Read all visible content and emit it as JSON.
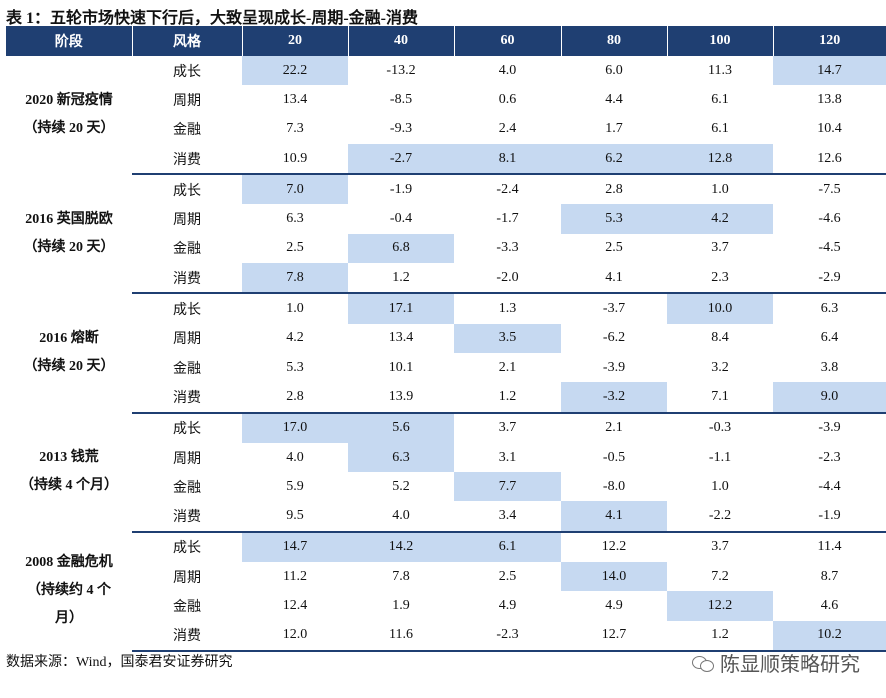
{
  "title": "表 1：五轮市场快速下行后，大致呈现成长-周期-金融-消费",
  "header": {
    "phase": "阶段",
    "style": "风格",
    "cols": [
      "20",
      "40",
      "60",
      "80",
      "100",
      "120"
    ]
  },
  "highlight_color": "#c6d9f1",
  "header_color": "#1f3f72",
  "groups": [
    {
      "phase_lines": [
        "2020 新冠疫情",
        "（持续 20 天）"
      ],
      "rows": [
        {
          "style": "成长",
          "values": [
            "22.2",
            "-13.2",
            "4.0",
            "6.0",
            "11.3",
            "14.7"
          ],
          "hl": [
            true,
            false,
            false,
            false,
            false,
            true
          ]
        },
        {
          "style": "周期",
          "values": [
            "13.4",
            "-8.5",
            "0.6",
            "4.4",
            "6.1",
            "13.8"
          ],
          "hl": [
            false,
            false,
            false,
            false,
            false,
            false
          ]
        },
        {
          "style": "金融",
          "values": [
            "7.3",
            "-9.3",
            "2.4",
            "1.7",
            "6.1",
            "10.4"
          ],
          "hl": [
            false,
            false,
            false,
            false,
            false,
            false
          ]
        },
        {
          "style": "消费",
          "values": [
            "10.9",
            "-2.7",
            "8.1",
            "6.2",
            "12.8",
            "12.6"
          ],
          "hl": [
            false,
            true,
            true,
            true,
            true,
            false
          ]
        }
      ]
    },
    {
      "phase_lines": [
        "2016 英国脱欧",
        "（持续 20 天）"
      ],
      "rows": [
        {
          "style": "成长",
          "values": [
            "7.0",
            "-1.9",
            "-2.4",
            "2.8",
            "1.0",
            "-7.5"
          ],
          "hl": [
            true,
            false,
            false,
            false,
            false,
            false
          ]
        },
        {
          "style": "周期",
          "values": [
            "6.3",
            "-0.4",
            "-1.7",
            "5.3",
            "4.2",
            "-4.6"
          ],
          "hl": [
            false,
            false,
            false,
            true,
            true,
            false
          ]
        },
        {
          "style": "金融",
          "values": [
            "2.5",
            "6.8",
            "-3.3",
            "2.5",
            "3.7",
            "-4.5"
          ],
          "hl": [
            false,
            true,
            false,
            false,
            false,
            false
          ]
        },
        {
          "style": "消费",
          "values": [
            "7.8",
            "1.2",
            "-2.0",
            "4.1",
            "2.3",
            "-2.9"
          ],
          "hl": [
            true,
            false,
            false,
            false,
            false,
            false
          ]
        }
      ]
    },
    {
      "phase_lines": [
        "2016 熔断",
        "（持续 20 天）"
      ],
      "rows": [
        {
          "style": "成长",
          "values": [
            "1.0",
            "17.1",
            "1.3",
            "-3.7",
            "10.0",
            "6.3"
          ],
          "hl": [
            false,
            true,
            false,
            false,
            true,
            false
          ]
        },
        {
          "style": "周期",
          "values": [
            "4.2",
            "13.4",
            "3.5",
            "-6.2",
            "8.4",
            "6.4"
          ],
          "hl": [
            false,
            false,
            true,
            false,
            false,
            false
          ]
        },
        {
          "style": "金融",
          "values": [
            "5.3",
            "10.1",
            "2.1",
            "-3.9",
            "3.2",
            "3.8"
          ],
          "hl": [
            false,
            false,
            false,
            false,
            false,
            false
          ]
        },
        {
          "style": "消费",
          "values": [
            "2.8",
            "13.9",
            "1.2",
            "-3.2",
            "7.1",
            "9.0"
          ],
          "hl": [
            false,
            false,
            false,
            true,
            false,
            true
          ]
        }
      ]
    },
    {
      "phase_lines": [
        "2013 钱荒",
        "（持续 4 个月）"
      ],
      "rows": [
        {
          "style": "成长",
          "values": [
            "17.0",
            "5.6",
            "3.7",
            "2.1",
            "-0.3",
            "-3.9"
          ],
          "hl": [
            true,
            true,
            false,
            false,
            false,
            false
          ]
        },
        {
          "style": "周期",
          "values": [
            "4.0",
            "6.3",
            "3.1",
            "-0.5",
            "-1.1",
            "-2.3"
          ],
          "hl": [
            false,
            true,
            false,
            false,
            false,
            false
          ]
        },
        {
          "style": "金融",
          "values": [
            "5.9",
            "5.2",
            "7.7",
            "-8.0",
            "1.0",
            "-4.4"
          ],
          "hl": [
            false,
            false,
            true,
            false,
            false,
            false
          ]
        },
        {
          "style": "消费",
          "values": [
            "9.5",
            "4.0",
            "3.4",
            "4.1",
            "-2.2",
            "-1.9"
          ],
          "hl": [
            false,
            false,
            false,
            true,
            false,
            false
          ]
        }
      ]
    },
    {
      "phase_lines": [
        "2008 金融危机",
        "（持续约 4 个",
        "月）"
      ],
      "rows": [
        {
          "style": "成长",
          "values": [
            "14.7",
            "14.2",
            "6.1",
            "12.2",
            "3.7",
            "11.4"
          ],
          "hl": [
            true,
            true,
            true,
            false,
            false,
            false
          ]
        },
        {
          "style": "周期",
          "values": [
            "11.2",
            "7.8",
            "2.5",
            "14.0",
            "7.2",
            "8.7"
          ],
          "hl": [
            false,
            false,
            false,
            true,
            false,
            false
          ]
        },
        {
          "style": "金融",
          "values": [
            "12.4",
            "1.9",
            "4.9",
            "4.9",
            "12.2",
            "4.6"
          ],
          "hl": [
            false,
            false,
            false,
            false,
            true,
            false
          ]
        },
        {
          "style": "消费",
          "values": [
            "12.0",
            "11.6",
            "-2.3",
            "12.7",
            "1.2",
            "10.2"
          ],
          "hl": [
            false,
            false,
            false,
            false,
            false,
            true
          ]
        }
      ]
    }
  ],
  "source": "数据来源：Wind，国泰君安证券研究",
  "watermark": {
    "icon": "wechat-icon",
    "text": "陈显顺策略研究"
  }
}
